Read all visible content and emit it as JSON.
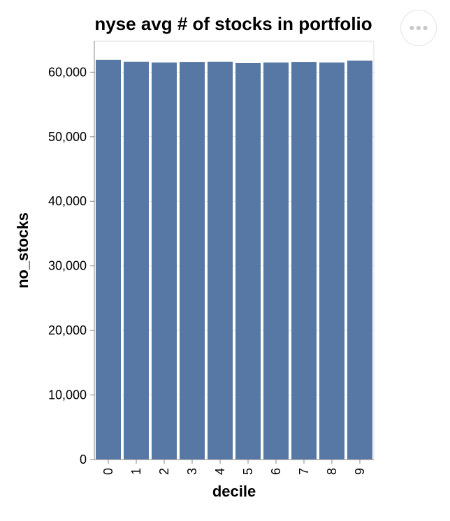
{
  "chart_data": {
    "type": "bar",
    "title": "nyse avg # of stocks in portfolio",
    "xlabel": "decile",
    "ylabel": "no_stocks",
    "categories": [
      "0",
      "1",
      "2",
      "3",
      "4",
      "5",
      "6",
      "7",
      "8",
      "9"
    ],
    "values": [
      61900,
      61600,
      61500,
      61550,
      61600,
      61450,
      61500,
      61550,
      61500,
      61800
    ],
    "ylim": [
      0,
      64800
    ],
    "yticks": [
      0,
      10000,
      20000,
      30000,
      40000,
      50000,
      60000
    ],
    "ytick_labels": [
      "0",
      "10,000",
      "20,000",
      "30,000",
      "40,000",
      "50,000",
      "60,000"
    ],
    "grid": true,
    "bar_color": "#5778a4"
  },
  "menu": {
    "icon": "ellipsis-icon"
  }
}
